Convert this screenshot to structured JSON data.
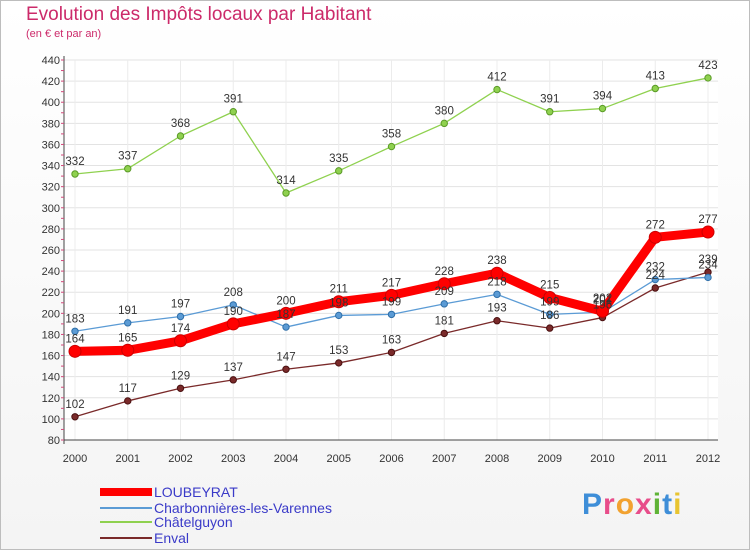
{
  "header": {
    "title": "Evolution des Impôts locaux par Habitant",
    "subtitle": "(en € et par an)"
  },
  "logo": {
    "text": "Proxiti",
    "letters": [
      "P",
      "r",
      "o",
      "x",
      "i",
      "t",
      "i"
    ],
    "colors": [
      "#3e8ed8",
      "#e84d8a",
      "#f2a230",
      "#e84d8a",
      "#5fb336",
      "#3e8ed8",
      "#e8c430"
    ]
  },
  "chart_data": {
    "type": "line",
    "categories": [
      "2000",
      "2001",
      "2002",
      "2003",
      "2004",
      "2005",
      "2006",
      "2007",
      "2008",
      "2009",
      "2010",
      "2011",
      "2012"
    ],
    "ylim": [
      80,
      440
    ],
    "yticks": [
      80,
      100,
      120,
      140,
      160,
      180,
      200,
      220,
      240,
      260,
      280,
      300,
      320,
      340,
      360,
      380,
      400,
      420,
      440
    ],
    "grid": true,
    "legend_position": "bottom-left",
    "series": [
      {
        "name": "LOUBEYRAT",
        "color": "#ff0000",
        "values": [
          164,
          165,
          174,
          190,
          200,
          211,
          217,
          228,
          238,
          215,
          202,
          272,
          277
        ]
      },
      {
        "name": "Charbonnières-les-Varennes",
        "color": "#5b9bd5",
        "values": [
          183,
          191,
          197,
          208,
          187,
          198,
          199,
          209,
          218,
          199,
          201,
          232,
          234
        ]
      },
      {
        "name": "Châtelguyon",
        "color": "#8fd14f",
        "values": [
          332,
          337,
          368,
          391,
          314,
          335,
          358,
          380,
          412,
          391,
          394,
          413,
          423
        ]
      },
      {
        "name": "Enval",
        "color": "#7a2a2a",
        "values": [
          102,
          117,
          129,
          137,
          147,
          153,
          163,
          181,
          193,
          186,
          196,
          224,
          239
        ]
      }
    ]
  }
}
